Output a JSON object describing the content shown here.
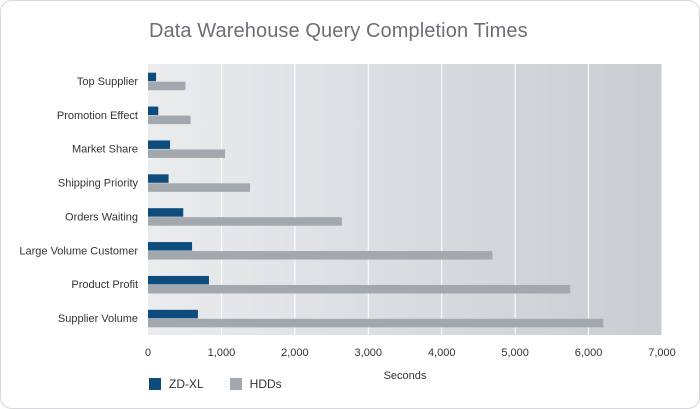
{
  "chart_data": {
    "type": "bar",
    "orientation": "horizontal",
    "title": "Data Warehouse Query Completion Times",
    "xlabel": "Seconds",
    "ylabel": "",
    "xlim": [
      0,
      7000
    ],
    "x_ticks": [
      "0",
      "1,000",
      "2,000",
      "3,000",
      "4,000",
      "5,000",
      "6,000",
      "7,000"
    ],
    "x_tick_values": [
      0,
      1000,
      2000,
      3000,
      4000,
      5000,
      6000,
      7000
    ],
    "grid": "vertical",
    "legend_position": "bottom-left",
    "categories": [
      "Top Supplier",
      "Promotion Effect",
      "Market Share",
      "Shipping Priority",
      "Orders Waiting",
      "Large Volume Customer",
      "Product Profit",
      "Supplier Volume"
    ],
    "series": [
      {
        "name": "ZD-XL",
        "color": "#0e4c7d",
        "values": [
          110,
          140,
          300,
          280,
          480,
          600,
          830,
          680
        ]
      },
      {
        "name": "HDDs",
        "color": "#a3a8ae",
        "values": [
          510,
          580,
          1050,
          1390,
          2640,
          4690,
          5750,
          6200
        ]
      }
    ]
  },
  "colors": {
    "plot_background_left": "#eaecee",
    "plot_background_right": "#c9ccd0",
    "gridline": "#ffffff",
    "title_text": "#6b6f75"
  }
}
